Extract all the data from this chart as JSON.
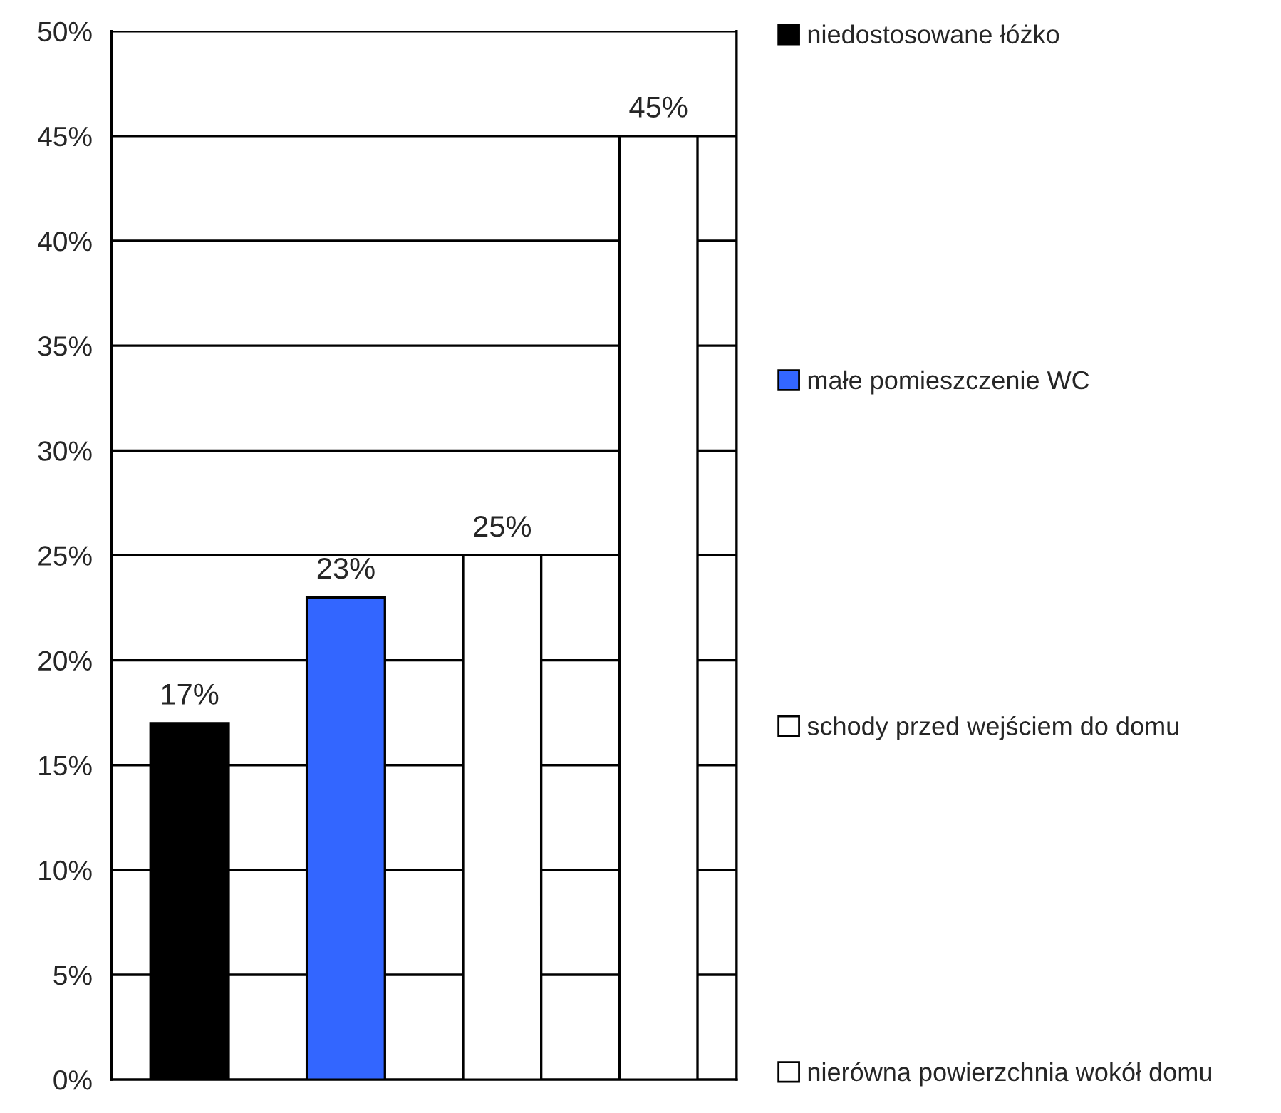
{
  "chart_data": {
    "type": "bar",
    "categories": [
      null
    ],
    "series": [
      {
        "name": "niedostosowane łóżko",
        "color": "#000000",
        "values": [
          17
        ]
      },
      {
        "name": "małe pomieszczenie WC",
        "color": "#3366ff",
        "values": [
          23
        ]
      },
      {
        "name": "schody przed wejściem do domu",
        "color": "#ffffff",
        "values": [
          25
        ]
      },
      {
        "name": "nierówna powierzchnia wokół domu",
        "color": "#ffffff",
        "values": [
          45
        ]
      }
    ],
    "value_labels": [
      "17%",
      "23%",
      "25%",
      "45%"
    ],
    "ylim": [
      0,
      50
    ],
    "yticks": [
      {
        "value": 0,
        "label": "0%"
      },
      {
        "value": 5,
        "label": "5%"
      },
      {
        "value": 10,
        "label": "10%"
      },
      {
        "value": 15,
        "label": "15%"
      },
      {
        "value": 20,
        "label": "20%"
      },
      {
        "value": 25,
        "label": "25%"
      },
      {
        "value": 30,
        "label": "30%"
      },
      {
        "value": 35,
        "label": "35%"
      },
      {
        "value": 40,
        "label": "40%"
      },
      {
        "value": 45,
        "label": "45%"
      },
      {
        "value": 50,
        "label": "50%"
      }
    ],
    "grid": "y",
    "legend": "right",
    "tick_labels": "y"
  }
}
